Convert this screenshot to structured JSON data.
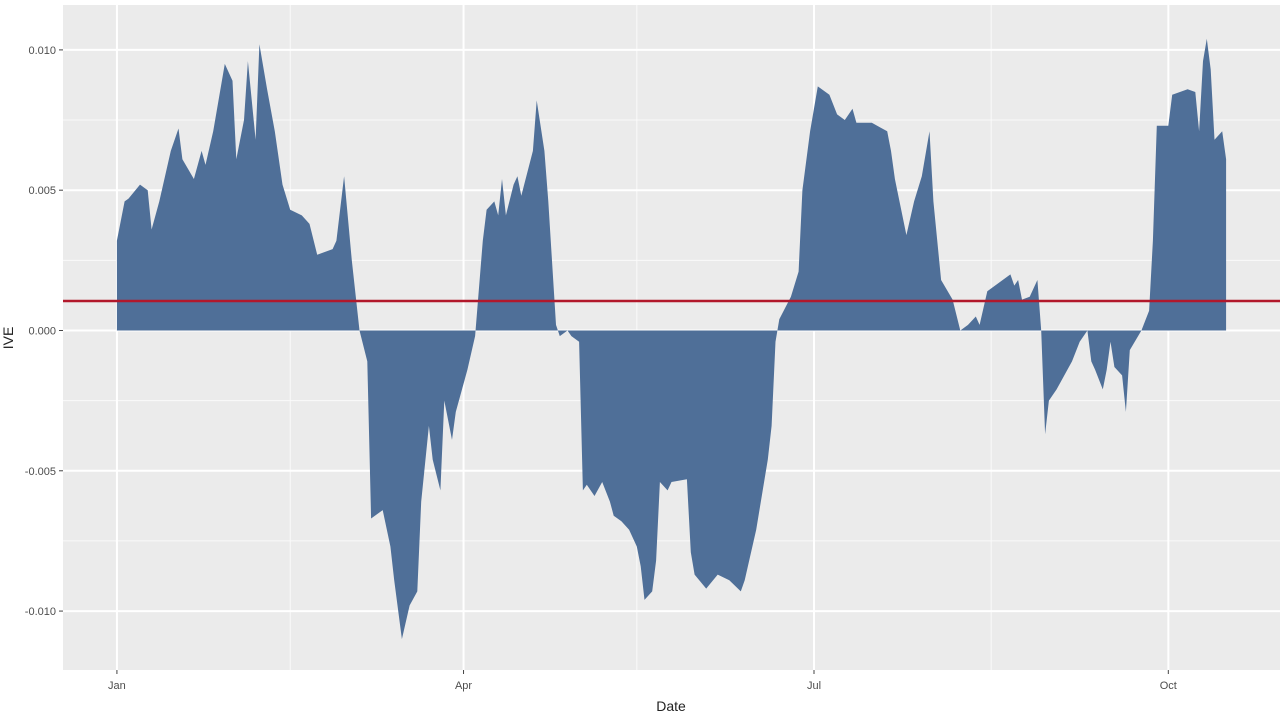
{
  "chart_data": {
    "type": "area",
    "title": "",
    "xlabel": "Date",
    "ylabel": "IVE",
    "xlim": [
      "12-18",
      "10-30"
    ],
    "ylim": [
      -0.0121,
      0.0116
    ],
    "x_ticks": [
      {
        "date": "01-01",
        "label": "Jan"
      },
      {
        "date": "04-01",
        "label": "Apr"
      },
      {
        "date": "07-01",
        "label": "Jul"
      },
      {
        "date": "10-01",
        "label": "Oct"
      }
    ],
    "x_minor": [
      "02-15",
      "05-16",
      "08-16"
    ],
    "y_ticks": [
      {
        "value": -0.01,
        "label": "-0.010"
      },
      {
        "value": -0.005,
        "label": "-0.005"
      },
      {
        "value": 0,
        "label": "0.000"
      },
      {
        "value": 0.005,
        "label": "0.005"
      },
      {
        "value": 0.01,
        "label": "0.010"
      }
    ],
    "grid": true,
    "fill_color": "#4f6f98",
    "reference_line": {
      "value": 0.00105,
      "color": "#b2182b"
    },
    "panel_background": "#ebebeb",
    "series": [
      {
        "x": [
          "01-01",
          "01-03",
          "01-04",
          "01-07",
          "01-09",
          "01-10",
          "01-12",
          "01-15",
          "01-17",
          "01-18",
          "01-21",
          "01-23",
          "01-24",
          "01-26",
          "01-29",
          "01-31",
          "02-01",
          "02-03",
          "02-04",
          "02-06",
          "02-07",
          "02-09",
          "02-11",
          "02-13",
          "02-15",
          "02-18",
          "02-20",
          "02-22",
          "02-26",
          "02-27",
          "03-01",
          "03-03",
          "03-05",
          "03-07",
          "03-08",
          "03-11",
          "03-13",
          "03-14",
          "03-16",
          "03-18",
          "03-20",
          "03-21",
          "03-23",
          "03-24",
          "03-26",
          "03-27",
          "03-29",
          "03-30",
          "04-02",
          "04-04",
          "04-06",
          "04-07",
          "04-09",
          "04-10",
          "04-11",
          "04-12",
          "04-14",
          "04-15",
          "04-16",
          "04-19",
          "04-20",
          "04-22",
          "04-23",
          "04-25",
          "04-26",
          "04-28",
          "04-29",
          "05-01",
          "05-02",
          "05-03",
          "05-05",
          "05-07",
          "05-09",
          "05-10",
          "05-12",
          "05-14",
          "05-16",
          "05-17",
          "05-18",
          "05-20",
          "05-21",
          "05-22",
          "05-24",
          "05-25",
          "05-29",
          "05-30",
          "05-31",
          "06-03",
          "06-06",
          "06-09",
          "06-12",
          "06-13",
          "06-16",
          "06-19",
          "06-20",
          "06-21",
          "06-22",
          "06-25",
          "06-27",
          "06-28",
          "06-30",
          "07-02",
          "07-05",
          "07-07",
          "07-09",
          "07-11",
          "07-12",
          "07-16",
          "07-20",
          "07-21",
          "07-22",
          "07-25",
          "07-27",
          "07-29",
          "07-31",
          "08-01",
          "08-03",
          "08-06",
          "08-08",
          "08-10",
          "08-12",
          "08-13",
          "08-15",
          "08-17",
          "08-21",
          "08-22",
          "08-23",
          "08-24",
          "08-26",
          "08-28",
          "08-29",
          "08-30",
          "08-31",
          "09-02",
          "09-04",
          "09-06",
          "09-08",
          "09-10",
          "09-11",
          "09-12",
          "09-14",
          "09-15",
          "09-16",
          "09-17",
          "09-19",
          "09-20",
          "09-21",
          "09-24",
          "09-26",
          "09-27",
          "09-28",
          "10-01",
          "10-02",
          "10-06",
          "10-08",
          "10-09",
          "10-10",
          "10-11",
          "10-12",
          "10-13",
          "10-15",
          "10-16"
        ],
        "values": [
          0.0032,
          0.0046,
          0.0047,
          0.0052,
          0.005,
          0.0036,
          0.0046,
          0.0064,
          0.0072,
          0.0061,
          0.0054,
          0.0064,
          0.0059,
          0.0071,
          0.0095,
          0.0089,
          0.0061,
          0.0075,
          0.0096,
          0.0068,
          0.0102,
          0.0086,
          0.0071,
          0.0052,
          0.0043,
          0.0041,
          0.0038,
          0.0027,
          0.0029,
          0.0032,
          0.0055,
          0.0025,
          0,
          -0.0011,
          -0.0067,
          -0.0064,
          -0.0077,
          -0.0089,
          -0.011,
          -0.0098,
          -0.0093,
          -0.0061,
          -0.0034,
          -0.0046,
          -0.0057,
          -0.0025,
          -0.0039,
          -0.0029,
          -0.0014,
          -0.0002,
          0.0032,
          0.0043,
          0.0046,
          0.0041,
          0.0054,
          0.0041,
          0.0052,
          0.0055,
          0.0048,
          0.0064,
          0.0082,
          0.0064,
          0.0046,
          0.0002,
          -0.0002,
          0,
          -0.0002,
          -0.0004,
          -0.0057,
          -0.0055,
          -0.0059,
          -0.0054,
          -0.0061,
          -0.0066,
          -0.0068,
          -0.0071,
          -0.0077,
          -0.0084,
          -0.0096,
          -0.0093,
          -0.0082,
          -0.0054,
          -0.0057,
          -0.0054,
          -0.0053,
          -0.0079,
          -0.0087,
          -0.0092,
          -0.0087,
          -0.0089,
          -0.0093,
          -0.0089,
          -0.0071,
          -0.0046,
          -0.0034,
          -0.0004,
          0.0004,
          0.0012,
          0.0021,
          0.005,
          0.0071,
          0.0087,
          0.0084,
          0.0077,
          0.0075,
          0.0079,
          0.0074,
          0.0074,
          0.0071,
          0.0064,
          0.0054,
          0.0034,
          0.0046,
          0.0055,
          0.0071,
          0.0046,
          0.0018,
          0.0011,
          0,
          0.0002,
          0.0005,
          0.0002,
          0.0014,
          0.0016,
          0.002,
          0.0016,
          0.0018,
          0.0011,
          0.0012,
          0.0018,
          0,
          -0.0037,
          -0.0025,
          -0.0021,
          -0.0016,
          -0.0011,
          -0.0004,
          0,
          -0.0011,
          -0.0014,
          -0.0021,
          -0.0014,
          -0.0004,
          -0.0013,
          -0.0016,
          -0.0029,
          -0.0007,
          0,
          0.0007,
          0.0032,
          0.0073,
          0.0073,
          0.0084,
          0.0086,
          0.0085,
          0.0071,
          0.0096,
          0.0104,
          0.0093,
          0.0068,
          0.0071,
          0.0061
        ]
      }
    ]
  }
}
